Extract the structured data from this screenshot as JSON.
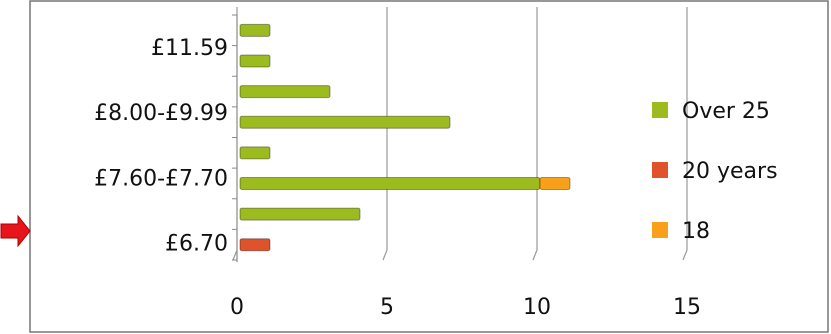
{
  "chart_data": {
    "type": "bar",
    "orientation": "horizontal",
    "stacked": true,
    "categories": [
      "£6.70",
      null,
      "£7.60-£7.70",
      null,
      "£8.00-£9.99",
      null,
      "£11.59",
      null
    ],
    "series": [
      {
        "name": "Over 25",
        "color": "#9bbb1e",
        "values": [
          null,
          4,
          10,
          1,
          7,
          3,
          1,
          1
        ]
      },
      {
        "name": "20 years",
        "color": "#e0522b",
        "values": [
          1,
          null,
          null,
          null,
          null,
          null,
          null,
          null
        ]
      },
      {
        "name": "18",
        "color": "#f9a01b",
        "values": [
          null,
          null,
          1,
          null,
          null,
          null,
          null,
          null
        ]
      }
    ],
    "xlim": [
      0,
      15
    ],
    "xticks": [
      0,
      5,
      10,
      15
    ],
    "grid": true,
    "legend": "right"
  }
}
